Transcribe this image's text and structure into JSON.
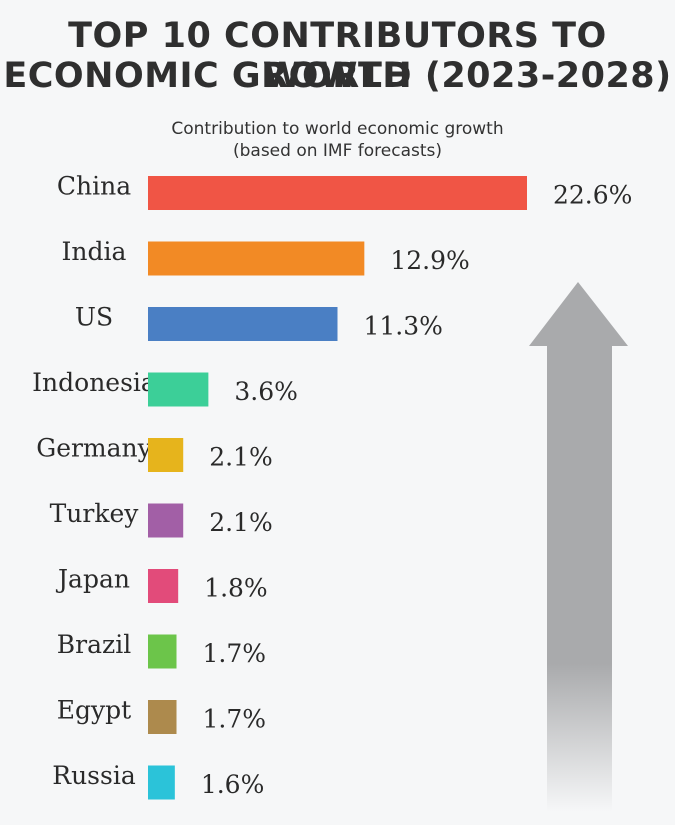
{
  "chart_data": {
    "type": "bar",
    "orientation": "horizontal",
    "title_lines": [
      "TOP 10 CONTRIBUTORS TO WORLD",
      "ECONOMIC GROWTH (2023-2028)"
    ],
    "subtitle_lines": [
      "Contribution to world economic growth",
      "(based on IMF forecasts)"
    ],
    "categories": [
      "China",
      "India",
      "US",
      "Indonesia",
      "Germany",
      "Turkey",
      "Japan",
      "Brazil",
      "Egypt",
      "Russia"
    ],
    "values": [
      22.6,
      12.9,
      11.3,
      3.6,
      2.1,
      2.1,
      1.8,
      1.7,
      1.7,
      1.6
    ],
    "value_labels": [
      "22.6%",
      "12.9%",
      "11.3%",
      "3.6%",
      "2.1%",
      "2.1%",
      "1.8%",
      "1.7%",
      "1.7%",
      "1.6%"
    ],
    "colors": [
      "#f05545",
      "#f28a25",
      "#4a7fc4",
      "#3ccf98",
      "#e6b41c",
      "#a25fa6",
      "#e24b7a",
      "#6cc54a",
      "#ad8a4d",
      "#2bc3d9"
    ],
    "unit": "%",
    "xlim": [
      0,
      22.6
    ],
    "xlabel": "",
    "ylabel": "",
    "grid": false,
    "legend": "none"
  },
  "decoration": {
    "arrow_color": "#a9aaac"
  }
}
